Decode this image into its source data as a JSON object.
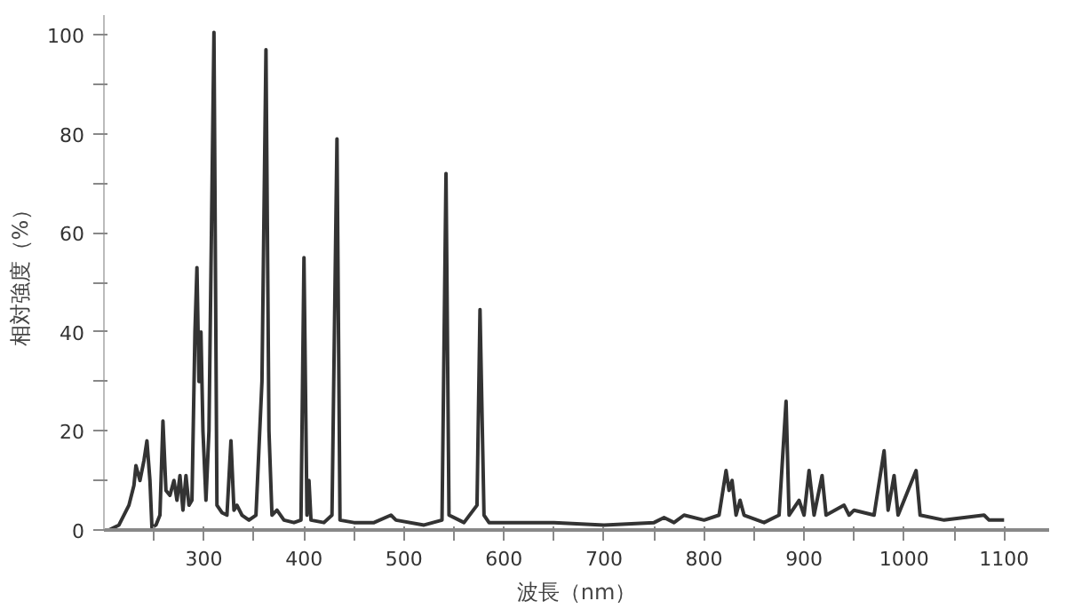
{
  "chart_data": {
    "type": "line",
    "xlabel": "波長（nm）",
    "ylabel": "相対強度（%）",
    "xlim": [
      200,
      1145
    ],
    "ylim": [
      0,
      104
    ],
    "xticks": [
      {
        "value": 250,
        "label": null
      },
      300,
      {
        "value": 350,
        "label": null
      },
      400,
      {
        "value": 450,
        "label": null
      },
      500,
      {
        "value": 550,
        "label": null
      },
      600,
      {
        "value": 650,
        "label": null
      },
      700,
      {
        "value": 750,
        "label": null
      },
      800,
      {
        "value": 850,
        "label": null
      },
      900,
      {
        "value": 950,
        "label": null
      },
      1000,
      {
        "value": 1050,
        "label": null
      },
      1100
    ],
    "yticks": [
      0,
      {
        "value": 10,
        "label": null
      },
      20,
      {
        "value": 30,
        "label": null
      },
      40,
      {
        "value": 50,
        "label": null
      },
      60,
      {
        "value": 70,
        "label": null
      },
      80,
      {
        "value": 90,
        "label": null
      },
      100
    ],
    "grid": false,
    "marker": "none",
    "line_style": "solid",
    "x": [
      205,
      215,
      225,
      230,
      232,
      236,
      240,
      243,
      246,
      248,
      252,
      256,
      259,
      262,
      266,
      270,
      273,
      276,
      279,
      282,
      285,
      288,
      291,
      293,
      295,
      297,
      299,
      302,
      305,
      310,
      313,
      318,
      323,
      327,
      330,
      333,
      338,
      345,
      352,
      358,
      362,
      365,
      368,
      373,
      380,
      390,
      397,
      400,
      403,
      405,
      407,
      420,
      428,
      433,
      436,
      450,
      470,
      487,
      492,
      520,
      538,
      542,
      545,
      560,
      573,
      576,
      580,
      585,
      600,
      650,
      700,
      750,
      760,
      770,
      780,
      800,
      815,
      822,
      825,
      828,
      832,
      836,
      840,
      860,
      875,
      882,
      885,
      895,
      900,
      905,
      910,
      918,
      922,
      940,
      945,
      950,
      970,
      980,
      984,
      990,
      994,
      1012,
      1016,
      1040,
      1080,
      1085,
      1100
    ],
    "series": [
      {
        "color": "#333333",
        "values": [
          0,
          1,
          5,
          9,
          13,
          10,
          14,
          18,
          10,
          0.5,
          1,
          3,
          22,
          8,
          7,
          10,
          6,
          11,
          4,
          11,
          5,
          6,
          40,
          53,
          30,
          40,
          20,
          6,
          20,
          100.5,
          5,
          3.5,
          3,
          18,
          4,
          5,
          3,
          2,
          3,
          30,
          97,
          20,
          3,
          4,
          2,
          1.5,
          2,
          55,
          3,
          10,
          2,
          1.5,
          3,
          79,
          2,
          1.5,
          1.5,
          3,
          2,
          1,
          2,
          72,
          3,
          1.5,
          5,
          44.5,
          3,
          1.5,
          1.5,
          1.5,
          1,
          1.5,
          2.5,
          1.5,
          3,
          2,
          3,
          12,
          8,
          10,
          3,
          6,
          3,
          1.5,
          3,
          26,
          3,
          6,
          3,
          12,
          3,
          11,
          3,
          5,
          3,
          4,
          3,
          16,
          4,
          11,
          3,
          12,
          3,
          2,
          3,
          2,
          2
        ]
      }
    ]
  }
}
